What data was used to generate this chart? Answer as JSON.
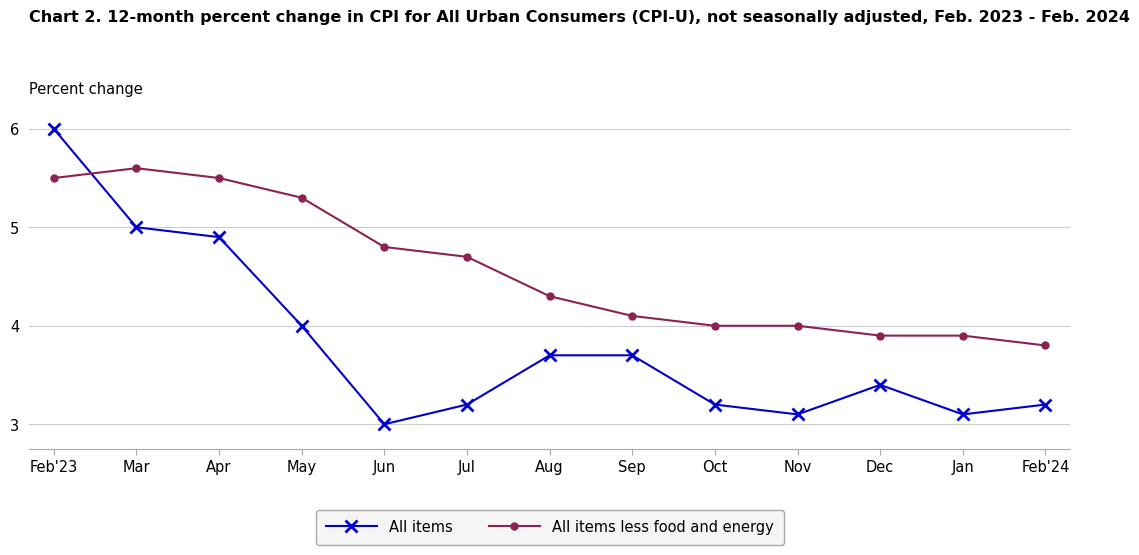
{
  "title": "Chart 2. 12-month percent change in CPI for All Urban Consumers (CPI-U), not seasonally adjusted, Feb. 2023 - Feb. 2024",
  "ylabel": "Percent change",
  "categories": [
    "Feb'23",
    "Mar",
    "Apr",
    "May",
    "Jun",
    "Jul",
    "Aug",
    "Sep",
    "Oct",
    "Nov",
    "Dec",
    "Jan",
    "Feb'24"
  ],
  "all_items": [
    6.0,
    5.0,
    4.9,
    4.0,
    3.0,
    3.2,
    3.7,
    3.7,
    3.2,
    3.1,
    3.4,
    3.1,
    3.2
  ],
  "core_items": [
    5.5,
    5.6,
    5.5,
    5.3,
    4.8,
    4.7,
    4.3,
    4.1,
    4.0,
    4.0,
    3.9,
    3.9,
    3.8
  ],
  "all_items_color": "#0000CC",
  "core_items_color": "#8B2252",
  "ylim_min": 2.75,
  "ylim_max": 6.25,
  "yticks": [
    3,
    4,
    5,
    6
  ],
  "background_color": "#ffffff",
  "plot_bg_color": "#ffffff",
  "grid_color": "#cccccc",
  "title_fontsize": 11.5,
  "ylabel_fontsize": 10.5,
  "tick_fontsize": 10.5,
  "legend_label_all": "All items",
  "legend_label_core": "All items less food and energy"
}
